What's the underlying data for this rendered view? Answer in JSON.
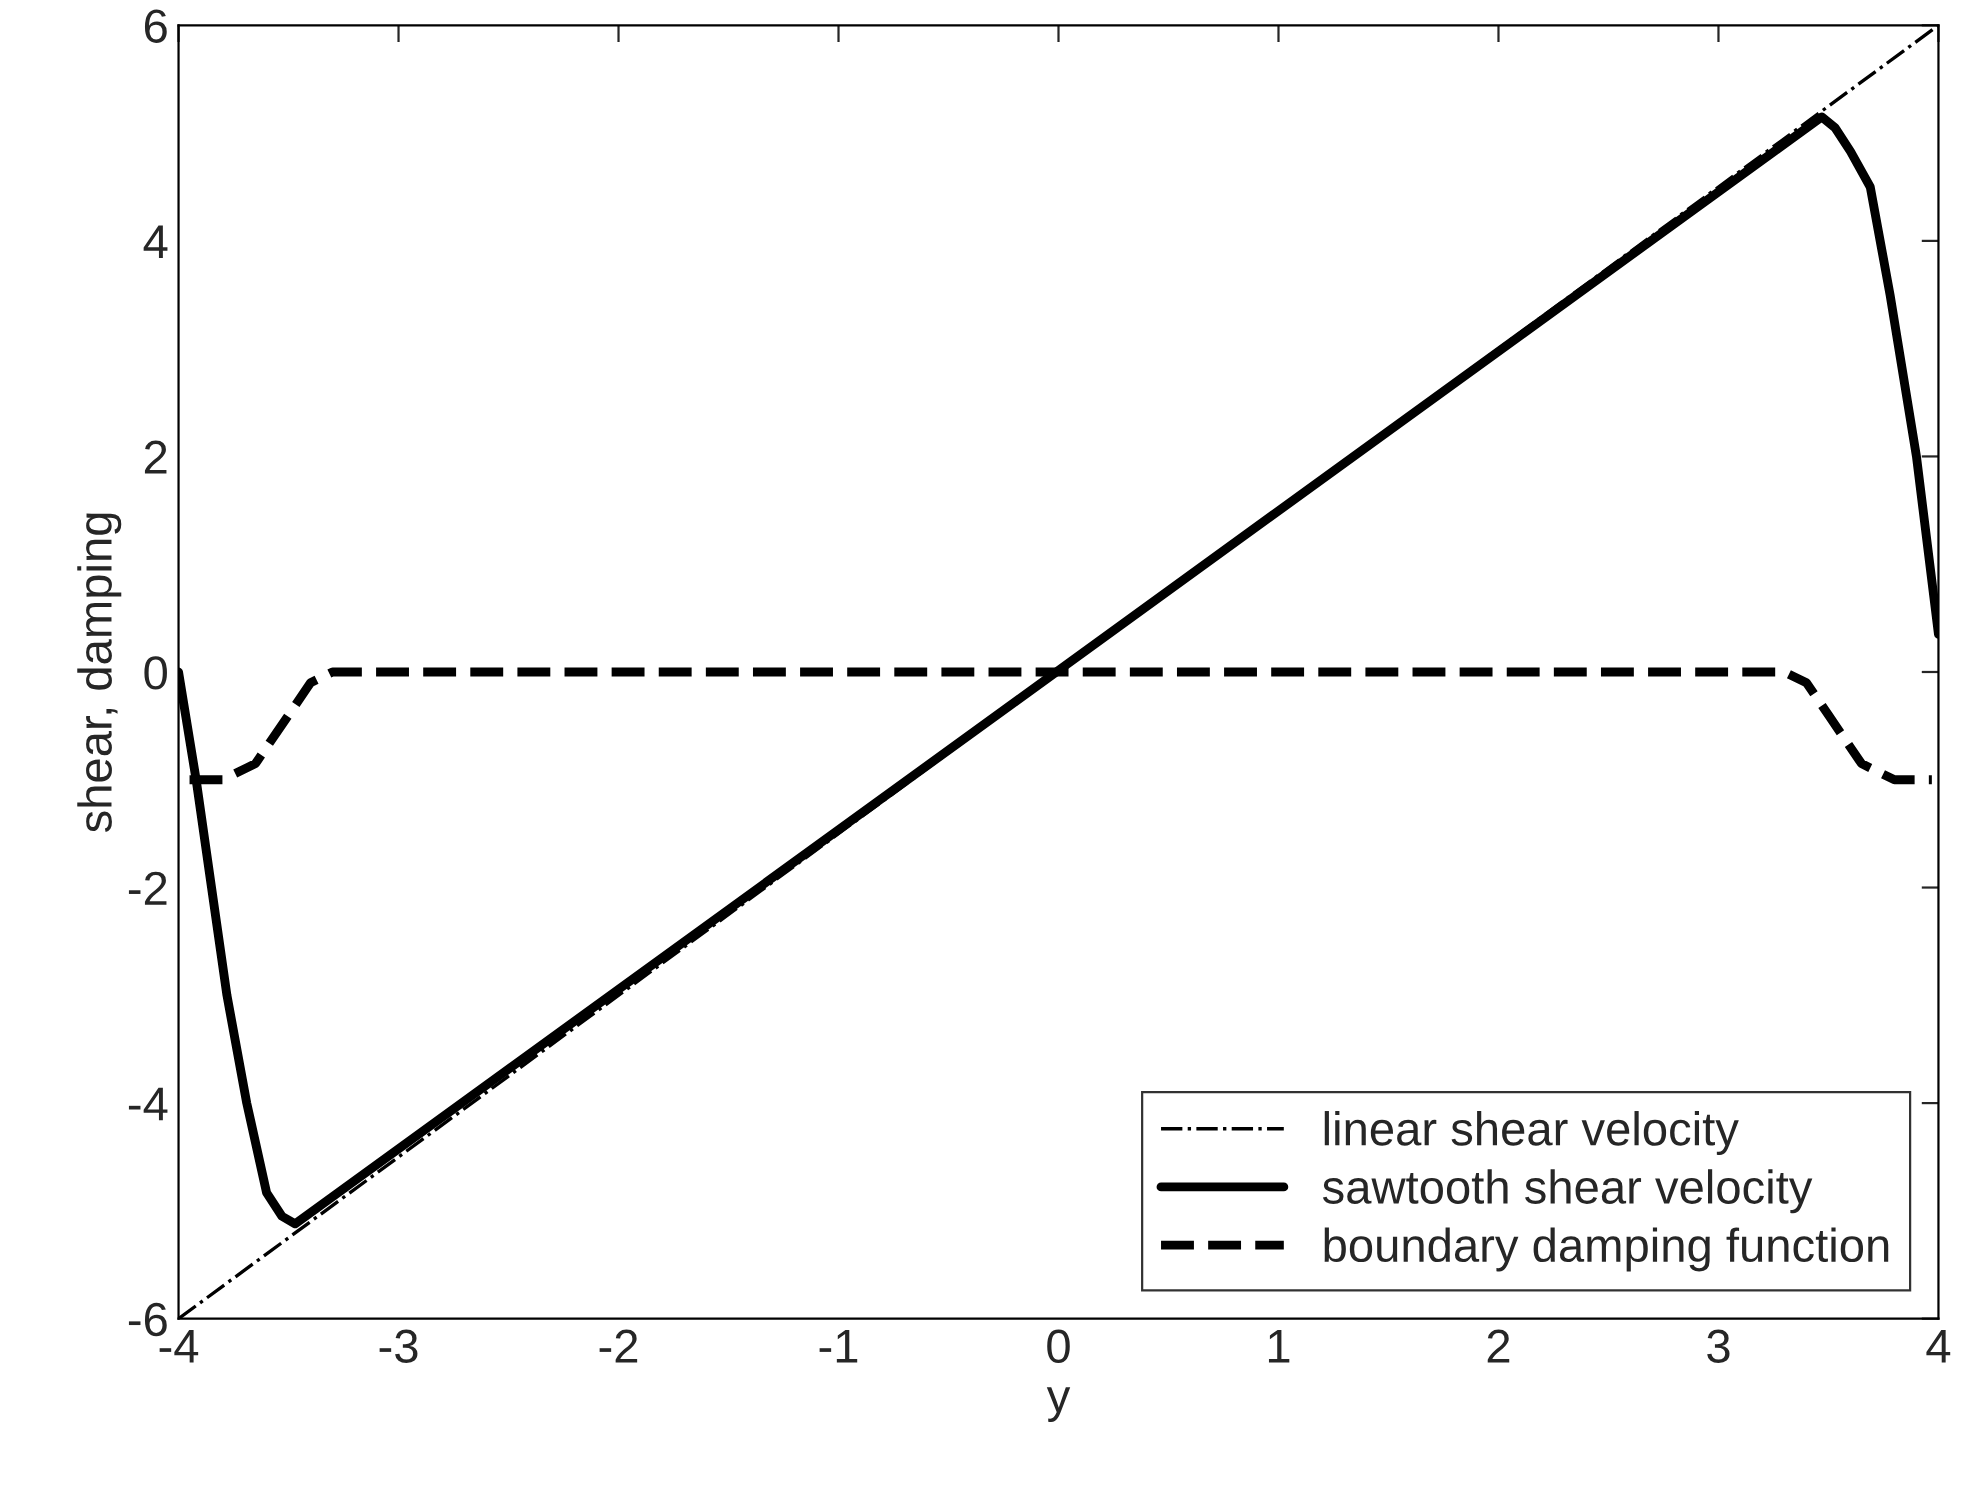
{
  "chart_data": {
    "type": "line",
    "xlabel": "y",
    "ylabel": "shear, damping",
    "xlim": [
      -4,
      4
    ],
    "ylim": [
      -6,
      6
    ],
    "xticks": [
      -4,
      -3,
      -2,
      -1,
      0,
      1,
      2,
      3,
      4
    ],
    "yticks": [
      -6,
      -4,
      -2,
      0,
      2,
      4,
      6
    ],
    "grid": false,
    "legend": "bottom right",
    "series": [
      {
        "name": "linear shear velocity",
        "color": "#000000",
        "line_style": "dashdot",
        "x": [
          -4,
          4
        ],
        "values": [
          -6,
          6
        ]
      },
      {
        "name": "sawtooth shear velocity",
        "color": "#000000",
        "line_style": "solid",
        "x": [
          -4,
          -3.92,
          -3.85,
          -3.78,
          -3.69,
          -3.6,
          -3.53,
          -3.47,
          3.47,
          3.53,
          3.6,
          3.69,
          3.78,
          3.9,
          4
        ],
        "values": [
          0,
          -1,
          -2,
          -3,
          -4,
          -4.83,
          -5.05,
          -5.12,
          5.15,
          5.05,
          4.83,
          4.5,
          3.5,
          2,
          0.35
        ]
      },
      {
        "name": "boundary damping function",
        "color": "#000000",
        "line_style": "dashed",
        "x": [
          -3.95,
          -3.8,
          -3.65,
          -3.5,
          -3.4,
          -3.3,
          3.3,
          3.4,
          3.5,
          3.65,
          3.8,
          3.97
        ],
        "values": [
          -1,
          -1,
          -0.85,
          -0.4,
          -0.1,
          0,
          0,
          -0.1,
          -0.4,
          -0.85,
          -1,
          -1
        ]
      }
    ]
  }
}
